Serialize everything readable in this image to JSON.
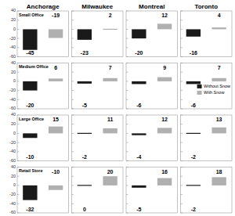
{
  "chart_data": [
    {
      "type": "bar",
      "title": "Anchorage",
      "annotations": [
        "Small Office"
      ],
      "categories": [
        null
      ],
      "series": [
        {
          "color": "#1a1a1a",
          "values": [
            -45
          ]
        },
        {
          "color": "#b0b0b0",
          "values": [
            -19
          ]
        }
      ],
      "ylim": [
        -60,
        40
      ],
      "yticks": [
        -60,
        -40,
        -20,
        0,
        20,
        40
      ],
      "data_labels": true,
      "tick_labels": "y"
    },
    {
      "type": "bar",
      "annotations": [
        "Medium Office"
      ],
      "categories": [
        null
      ],
      "series": [
        {
          "color": "#1a1a1a",
          "values": [
            -20
          ]
        },
        {
          "color": "#b0b0b0",
          "values": [
            6
          ]
        }
      ],
      "ylim": [
        -60,
        40
      ],
      "yticks": [
        -60,
        -40,
        -20,
        0,
        20,
        40
      ],
      "data_labels": true,
      "tick_labels": "y"
    },
    {
      "type": "bar",
      "annotations": [
        "Large Office"
      ],
      "categories": [
        null
      ],
      "series": [
        {
          "color": "#1a1a1a",
          "values": [
            -10
          ]
        },
        {
          "color": "#b0b0b0",
          "values": [
            15
          ]
        }
      ],
      "ylim": [
        -60,
        40
      ],
      "yticks": [
        -60,
        -40,
        -20,
        0,
        20,
        40
      ],
      "data_labels": true,
      "tick_labels": "y"
    },
    {
      "type": "bar",
      "annotations": [
        "Retail Store"
      ],
      "categories": [
        null
      ],
      "series": [
        {
          "color": "#1a1a1a",
          "values": [
            -32
          ]
        },
        {
          "color": "#b0b0b0",
          "values": [
            -10
          ]
        }
      ],
      "ylim": [
        -60,
        40
      ],
      "yticks": [
        -60,
        -40,
        -20,
        0,
        20,
        40
      ],
      "data_labels": true,
      "tick_labels": "y"
    },
    {
      "type": "bar",
      "title": "Milwaukee",
      "categories": [
        null
      ],
      "series": [
        {
          "color": "#1a1a1a",
          "values": [
            -23
          ]
        },
        {
          "color": "#b0b0b0",
          "values": [
            2
          ]
        }
      ],
      "ylim": [
        -60,
        40
      ],
      "yticks": [
        -60,
        -40,
        -20,
        0,
        20,
        40
      ],
      "data_labels": true,
      "tick_labels": false
    },
    {
      "type": "bar",
      "categories": [
        null
      ],
      "series": [
        {
          "color": "#1a1a1a",
          "values": [
            -5
          ]
        },
        {
          "color": "#b0b0b0",
          "values": [
            7
          ]
        }
      ],
      "ylim": [
        -60,
        40
      ],
      "yticks": [
        -60,
        -40,
        -20,
        0,
        20,
        40
      ],
      "data_labels": true,
      "tick_labels": false
    },
    {
      "type": "bar",
      "categories": [
        null
      ],
      "series": [
        {
          "color": "#1a1a1a",
          "values": [
            -2
          ]
        },
        {
          "color": "#b0b0b0",
          "values": [
            11
          ]
        }
      ],
      "ylim": [
        -60,
        40
      ],
      "yticks": [
        -60,
        -40,
        -20,
        0,
        20,
        40
      ],
      "data_labels": true,
      "tick_labels": false
    },
    {
      "type": "bar",
      "categories": [
        null
      ],
      "series": [
        {
          "color": "#1a1a1a",
          "values": [
            0
          ]
        },
        {
          "color": "#b0b0b0",
          "values": [
            20
          ]
        }
      ],
      "ylim": [
        -60,
        40
      ],
      "yticks": [
        -60,
        -40,
        -20,
        0,
        20,
        40
      ],
      "data_labels": true,
      "tick_labels": false
    },
    {
      "type": "bar",
      "title": "Montreal",
      "categories": [
        null
      ],
      "series": [
        {
          "color": "#1a1a1a",
          "values": [
            -20
          ]
        },
        {
          "color": "#b0b0b0",
          "values": [
            12
          ]
        }
      ],
      "ylim": [
        -60,
        40
      ],
      "yticks": [
        -60,
        -40,
        -20,
        0,
        20,
        40
      ],
      "data_labels": true,
      "tick_labels": false
    },
    {
      "type": "bar",
      "categories": [
        null
      ],
      "series": [
        {
          "color": "#1a1a1a",
          "values": [
            -6
          ]
        },
        {
          "color": "#b0b0b0",
          "values": [
            9
          ]
        }
      ],
      "ylim": [
        -60,
        40
      ],
      "yticks": [
        -60,
        -40,
        -20,
        0,
        20,
        40
      ],
      "data_labels": true,
      "tick_labels": false
    },
    {
      "type": "bar",
      "categories": [
        null
      ],
      "series": [
        {
          "color": "#1a1a1a",
          "values": [
            -4
          ]
        },
        {
          "color": "#b0b0b0",
          "values": [
            12
          ]
        }
      ],
      "ylim": [
        -60,
        40
      ],
      "yticks": [
        -60,
        -40,
        -20,
        0,
        20,
        40
      ],
      "data_labels": true,
      "tick_labels": false
    },
    {
      "type": "bar",
      "categories": [
        null
      ],
      "series": [
        {
          "color": "#1a1a1a",
          "values": [
            -5
          ]
        },
        {
          "color": "#b0b0b0",
          "values": [
            16
          ]
        }
      ],
      "ylim": [
        -60,
        40
      ],
      "yticks": [
        -60,
        -40,
        -20,
        0,
        20,
        40
      ],
      "data_labels": true,
      "tick_labels": false
    },
    {
      "type": "bar",
      "title": "Toronto",
      "categories": [
        null
      ],
      "series": [
        {
          "color": "#1a1a1a",
          "values": [
            -16
          ]
        },
        {
          "color": "#b0b0b0",
          "values": [
            4
          ]
        }
      ],
      "ylim": [
        -60,
        40
      ],
      "yticks": [
        -60,
        -40,
        -20,
        0,
        20,
        40
      ],
      "data_labels": true,
      "tick_labels": false
    },
    {
      "type": "bar",
      "categories": [
        null
      ],
      "legend": "lower right",
      "series": [
        {
          "name": "Without Snow",
          "color": "#1a1a1a",
          "values": [
            -6
          ]
        },
        {
          "name": "With Snow",
          "color": "#b0b0b0",
          "values": [
            7
          ]
        }
      ],
      "ylim": [
        -60,
        40
      ],
      "yticks": [
        -60,
        -40,
        -20,
        0,
        20,
        40
      ],
      "data_labels": true,
      "tick_labels": false
    },
    {
      "type": "bar",
      "categories": [
        null
      ],
      "series": [
        {
          "color": "#1a1a1a",
          "values": [
            -2
          ]
        },
        {
          "color": "#b0b0b0",
          "values": [
            13
          ]
        }
      ],
      "ylim": [
        -60,
        40
      ],
      "yticks": [
        -60,
        -40,
        -20,
        0,
        20,
        40
      ],
      "data_labels": true,
      "tick_labels": false
    },
    {
      "type": "bar",
      "categories": [
        null
      ],
      "series": [
        {
          "color": "#1a1a1a",
          "values": [
            -2
          ]
        },
        {
          "color": "#b0b0b0",
          "values": [
            18
          ]
        }
      ],
      "ylim": [
        -60,
        40
      ],
      "yticks": [
        -60,
        -40,
        -20,
        0,
        20,
        40
      ],
      "data_labels": true,
      "tick_labels": false
    }
  ]
}
